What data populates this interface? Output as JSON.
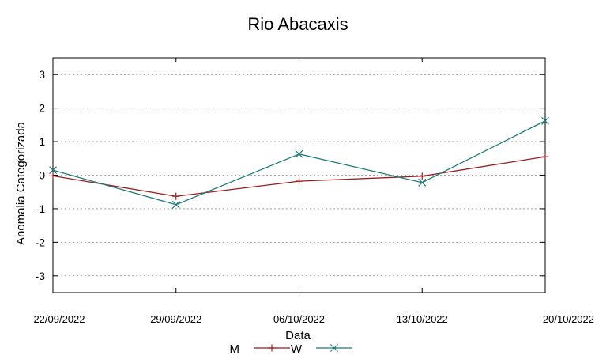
{
  "chart_data": {
    "type": "line",
    "title": "Rio Abacaxis",
    "xlabel": "Data",
    "ylabel": "Anomalia Categorizada",
    "x": [
      "22/09/2022",
      "29/09/2022",
      "06/10/2022",
      "13/10/2022",
      "20/10/2022"
    ],
    "ylim": [
      -3.5,
      3.5
    ],
    "yticks": [
      "3",
      "2",
      "1",
      "0",
      "-1",
      "-2",
      "-3"
    ],
    "grid": "horizontal dotted",
    "legend_position": "bottom-center",
    "series": [
      {
        "name": "M",
        "values": [
          -0.02,
          -0.63,
          -0.18,
          -0.03,
          0.55
        ],
        "color": "#9b1b1b",
        "marker": "plus"
      },
      {
        "name": "W",
        "values": [
          0.15,
          -0.88,
          0.63,
          -0.22,
          1.62
        ],
        "color": "#1f7a7a",
        "marker": "cross"
      }
    ]
  }
}
